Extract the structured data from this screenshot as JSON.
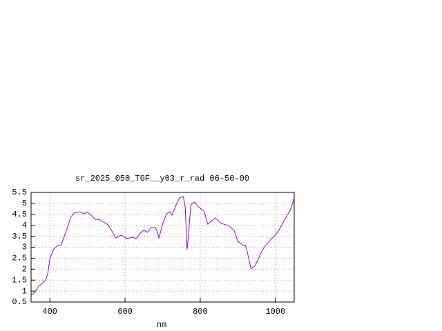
{
  "chart_data": {
    "type": "line",
    "title": "sr_2025_050_TGF__y03_r_rad 06-50-00",
    "xlabel": "nm",
    "xlim": [
      350,
      1050
    ],
    "xticks": [
      400,
      600,
      800,
      1000
    ],
    "ylim": [
      0.5,
      5.5
    ],
    "yticks": [
      0.5,
      1,
      1.5,
      2,
      2.5,
      3,
      3.5,
      4,
      4.5,
      5,
      5.5
    ],
    "grid": true,
    "series": [
      {
        "name": "",
        "color": "#9400d3",
        "x": [
          350,
          360,
          370,
          380,
          390,
          395,
          400,
          410,
          420,
          430,
          440,
          450,
          455,
          465,
          480,
          490,
          500,
          510,
          520,
          530,
          540,
          555,
          565,
          575,
          590,
          605,
          620,
          630,
          640,
          650,
          660,
          670,
          680,
          685,
          690,
          700,
          710,
          720,
          725,
          735,
          745,
          755,
          760,
          765,
          768,
          775,
          785,
          795,
          810,
          820,
          830,
          840,
          855,
          875,
          890,
          900,
          915,
          920,
          925,
          935,
          945,
          955,
          965,
          975,
          990,
          1000,
          1010,
          1025,
          1040,
          1050
        ],
        "values": [
          0.81,
          0.94,
          1.22,
          1.35,
          1.54,
          1.85,
          2.48,
          2.9,
          3.08,
          3.1,
          3.58,
          4.05,
          4.37,
          4.56,
          4.62,
          4.52,
          4.59,
          4.46,
          4.27,
          4.27,
          4.18,
          4.02,
          3.74,
          3.42,
          3.55,
          3.39,
          3.46,
          3.39,
          3.64,
          3.77,
          3.68,
          3.9,
          3.9,
          3.74,
          3.42,
          4.05,
          4.52,
          4.62,
          4.46,
          4.9,
          5.25,
          5.31,
          4.84,
          2.89,
          3.42,
          4.93,
          5.06,
          4.84,
          4.65,
          4.05,
          4.2,
          4.34,
          4.09,
          3.99,
          3.77,
          3.27,
          3.08,
          3.1,
          2.8,
          2.01,
          2.14,
          2.48,
          2.86,
          3.11,
          3.39,
          3.55,
          3.8,
          4.27,
          4.71,
          5.25
        ]
      }
    ]
  }
}
